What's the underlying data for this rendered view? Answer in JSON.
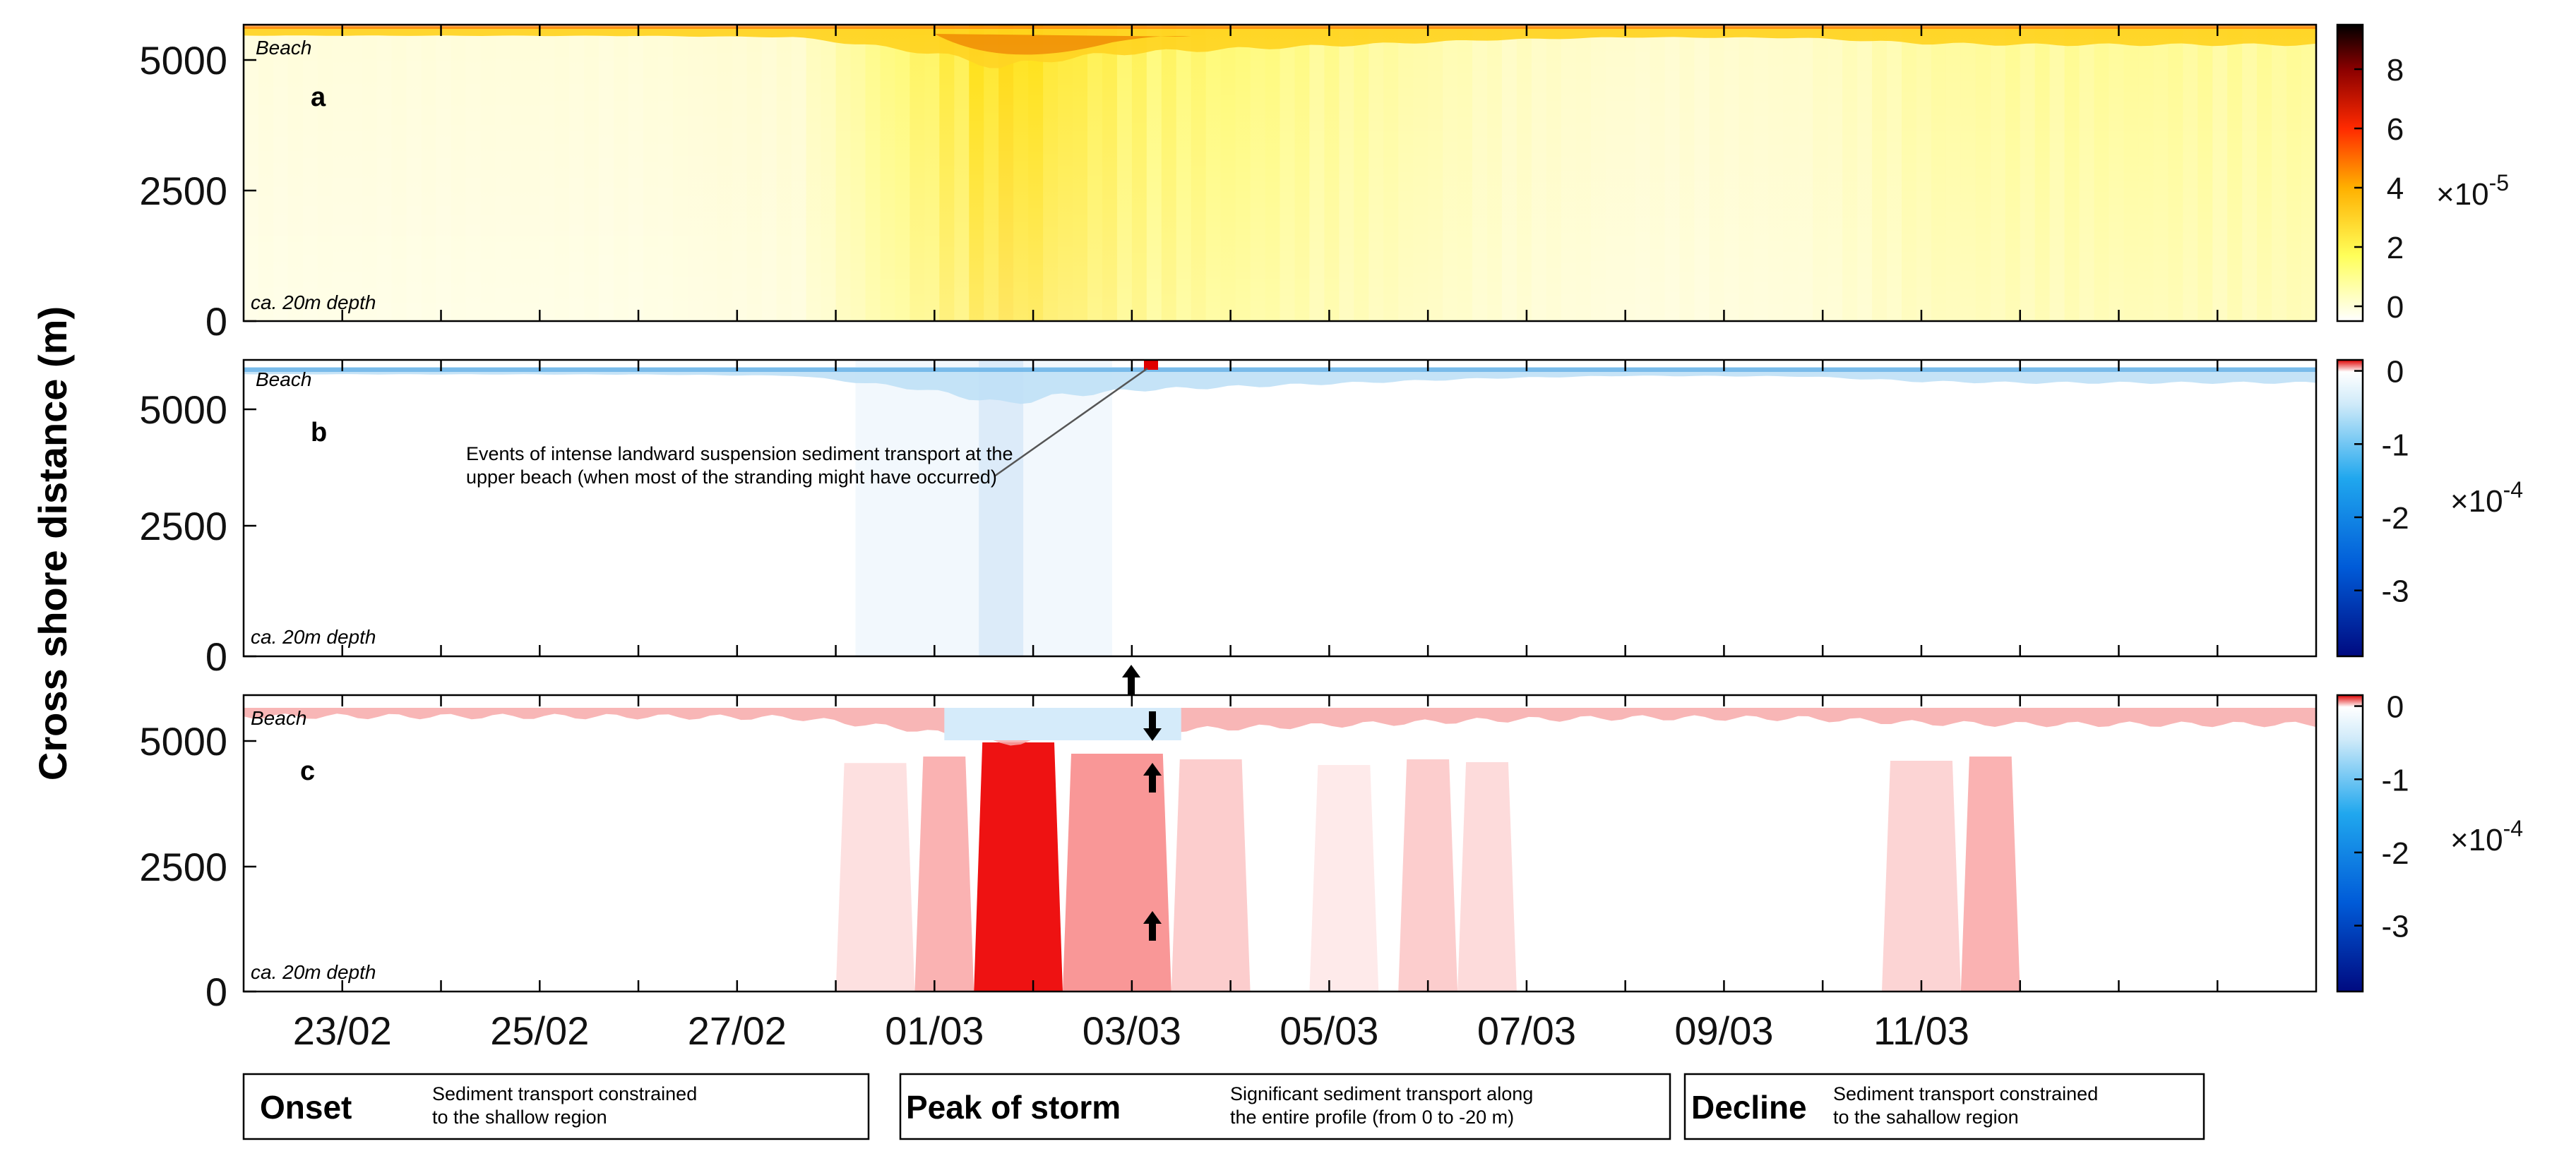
{
  "figure": {
    "ylabel": "Cross shore distance (m)",
    "beach_label": "Beach",
    "depth_label": "ca. 20m depth",
    "x_tick_labels": [
      "23/02",
      "25/02",
      "27/02",
      "01/03",
      "03/03",
      "05/03",
      "07/03",
      "09/03",
      "11/03"
    ],
    "y_tick_labels": [
      "0",
      "2500",
      "5000"
    ]
  },
  "chart_data": [
    {
      "type": "heatmap",
      "panel": "a",
      "x_range_days": [
        0,
        21
      ],
      "x_label_day_index": [
        1,
        3,
        5,
        7,
        9,
        11,
        13,
        15,
        17
      ],
      "y_range_m": [
        0,
        5700
      ],
      "y_ticks": [
        0,
        2500,
        5000
      ],
      "colormap": "white-yellow-red-black",
      "colorbar": {
        "ticks": [
          0,
          2,
          4,
          6,
          8
        ],
        "exponent_label": "×10",
        "exponent_power": "-5",
        "range": [
          -0.5,
          9.5
        ]
      },
      "activity_profile": [
        {
          "day": 0,
          "v": 0.05
        },
        {
          "day": 4,
          "v": 0.06
        },
        {
          "day": 5.6,
          "v": 0.1
        },
        {
          "day": 6.2,
          "v": 0.3
        },
        {
          "day": 6.8,
          "v": 0.5
        },
        {
          "day": 7.4,
          "v": 0.8
        },
        {
          "day": 7.7,
          "v": 1.0
        },
        {
          "day": 8.2,
          "v": 0.75
        },
        {
          "day": 9.0,
          "v": 0.55
        },
        {
          "day": 10.0,
          "v": 0.45
        },
        {
          "day": 11.0,
          "v": 0.35
        },
        {
          "day": 12.6,
          "v": 0.18
        },
        {
          "day": 14.0,
          "v": 0.1
        },
        {
          "day": 15.8,
          "v": 0.12
        },
        {
          "day": 17.0,
          "v": 0.28
        },
        {
          "day": 18.0,
          "v": 0.32
        }
      ]
    },
    {
      "type": "heatmap",
      "panel": "b",
      "x_range_days": [
        0,
        21
      ],
      "y_range_m": [
        0,
        5700
      ],
      "y_ticks": [
        0,
        2500,
        5000
      ],
      "colormap": "darkblue-blue-lightblue-white-red",
      "colorbar": {
        "ticks": [
          0,
          -1,
          -2,
          -3
        ],
        "exponent_label": "×10",
        "exponent_power": "-4",
        "range": [
          -3.9,
          0.15
        ]
      },
      "note_lines": [
        "Events of intense landward suspension sediment transport at the",
        "upper beach (when most of the stranding might have occurred)"
      ]
    },
    {
      "type": "heatmap",
      "panel": "c",
      "x_range_days": [
        0,
        21
      ],
      "y_range_m": [
        0,
        5700
      ],
      "y_ticks": [
        0,
        2500,
        5000
      ],
      "colormap": "darkblue-blue-lightblue-white-red",
      "colorbar": {
        "ticks": [
          0,
          -1,
          -2,
          -3
        ],
        "exponent_label": "×10",
        "exponent_power": "-4",
        "range": [
          -3.9,
          0.15
        ]
      },
      "landward_intervals": [
        {
          "start": 6.0,
          "end": 6.8,
          "v": 0.22
        },
        {
          "start": 6.8,
          "end": 7.4,
          "v": 0.45
        },
        {
          "start": 7.4,
          "end": 8.3,
          "v": 0.95
        },
        {
          "start": 8.3,
          "end": 9.4,
          "v": 0.55
        },
        {
          "start": 9.4,
          "end": 10.2,
          "v": 0.35
        },
        {
          "start": 10.8,
          "end": 11.5,
          "v": 0.15
        },
        {
          "start": 11.7,
          "end": 12.3,
          "v": 0.35
        },
        {
          "start": 12.3,
          "end": 12.9,
          "v": 0.25
        },
        {
          "start": 16.6,
          "end": 17.4,
          "v": 0.3
        },
        {
          "start": 17.4,
          "end": 18.0,
          "v": 0.45
        }
      ]
    }
  ],
  "phases": [
    {
      "title": "Onset",
      "desc_lines": [
        "Sediment transport constrained",
        "to the shallow region"
      ]
    },
    {
      "title": "Peak of storm",
      "desc_lines": [
        "Significant sediment transport along",
        "the entire profile (from 0 to -20 m)"
      ]
    },
    {
      "title": "Decline",
      "desc_lines": [
        "Sediment transport constrained",
        "to the sahallow region"
      ]
    }
  ],
  "colors": {
    "axis": "#000000",
    "red_strong": "#ee0000",
    "blue_strong": "#1f7fd6"
  }
}
